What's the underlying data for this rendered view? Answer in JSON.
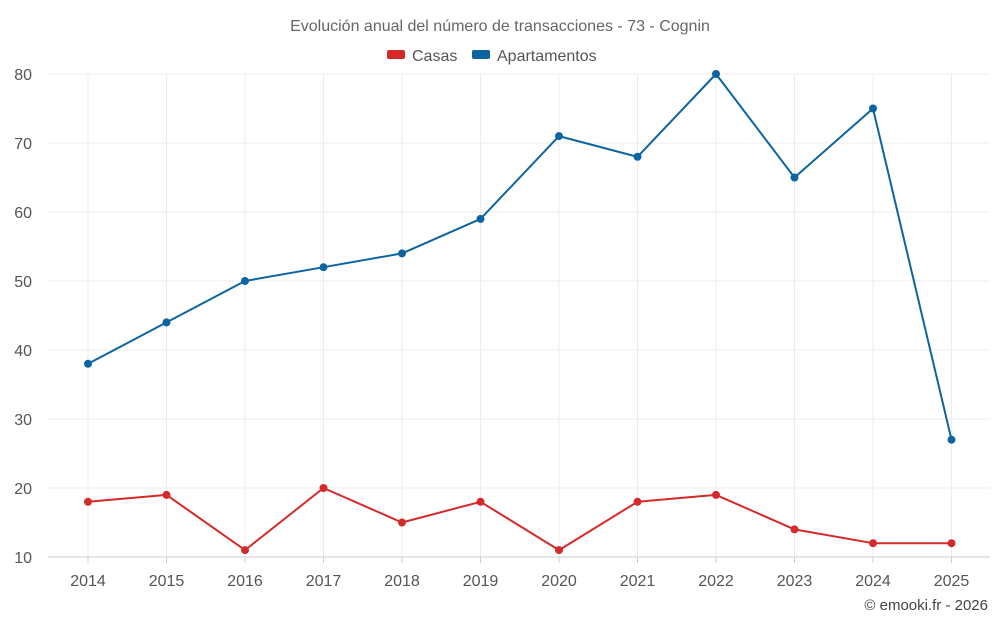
{
  "chart_data": {
    "type": "line",
    "title": "Evolución anual del número de transacciones - 73 - Cognin",
    "xlabel": "",
    "ylabel": "",
    "categories": [
      "2014",
      "2015",
      "2016",
      "2017",
      "2018",
      "2019",
      "2020",
      "2021",
      "2022",
      "2023",
      "2024",
      "2025"
    ],
    "ylim": [
      10,
      80
    ],
    "yticks": [
      10,
      20,
      30,
      40,
      50,
      60,
      70,
      80
    ],
    "grid": true,
    "legend_position": "top-center",
    "series": [
      {
        "name": "Casas",
        "color": "#d42a2a",
        "values": [
          18,
          19,
          11,
          20,
          15,
          18,
          11,
          18,
          19,
          14,
          12,
          12
        ]
      },
      {
        "name": "Apartamentos",
        "color": "#0e64a0",
        "values": [
          38,
          44,
          50,
          52,
          54,
          59,
          71,
          68,
          80,
          65,
          75,
          27
        ]
      }
    ]
  },
  "credit": "© emooki.fr - 2026"
}
